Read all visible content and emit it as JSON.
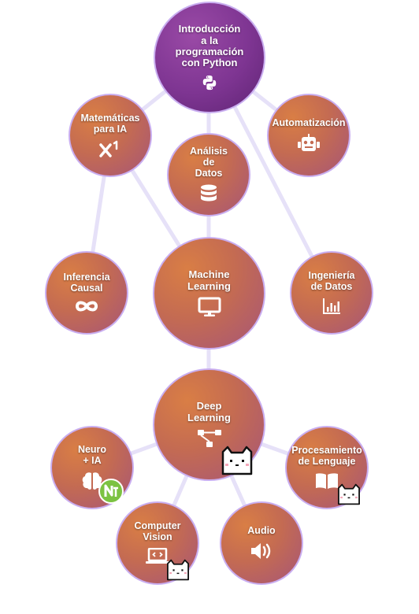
{
  "colors": {
    "node_orange": "#d97e45",
    "node_purple": "#7e3592",
    "edge": "#e6e1f8",
    "border": "#c9aef0"
  },
  "nodes": {
    "intro": {
      "label": "Introducción\na la\nprogramación\ncon Python",
      "icon": "python-icon"
    },
    "math": {
      "label": "Matemáticas\npara IA",
      "icon": "superscript-icon"
    },
    "analisis": {
      "label": "Análisis\nde\nDatos",
      "icon": "database-icon"
    },
    "automatizacion": {
      "label": "Automatización",
      "icon": "robot-icon"
    },
    "inferencia": {
      "label": "Inferencia\nCausal",
      "icon": "infinity-icon"
    },
    "ml": {
      "label": "Machine\nLearning",
      "icon": "monitor-icon"
    },
    "ingenieria": {
      "label": "Ingeniería\nde Datos",
      "icon": "bar-chart-icon"
    },
    "dl": {
      "label": "Deep\nLearning",
      "icon": "network-icon"
    },
    "neuro": {
      "label": "Neuro\n+ IA",
      "icon": "brain-icon"
    },
    "nlp": {
      "label": "Procesamiento\nde Lenguaje",
      "icon": "book-icon"
    },
    "cv": {
      "label": "Computer\nVision",
      "icon": "laptop-code-icon"
    },
    "audio": {
      "label": "Audio",
      "icon": "speaker-icon"
    }
  }
}
